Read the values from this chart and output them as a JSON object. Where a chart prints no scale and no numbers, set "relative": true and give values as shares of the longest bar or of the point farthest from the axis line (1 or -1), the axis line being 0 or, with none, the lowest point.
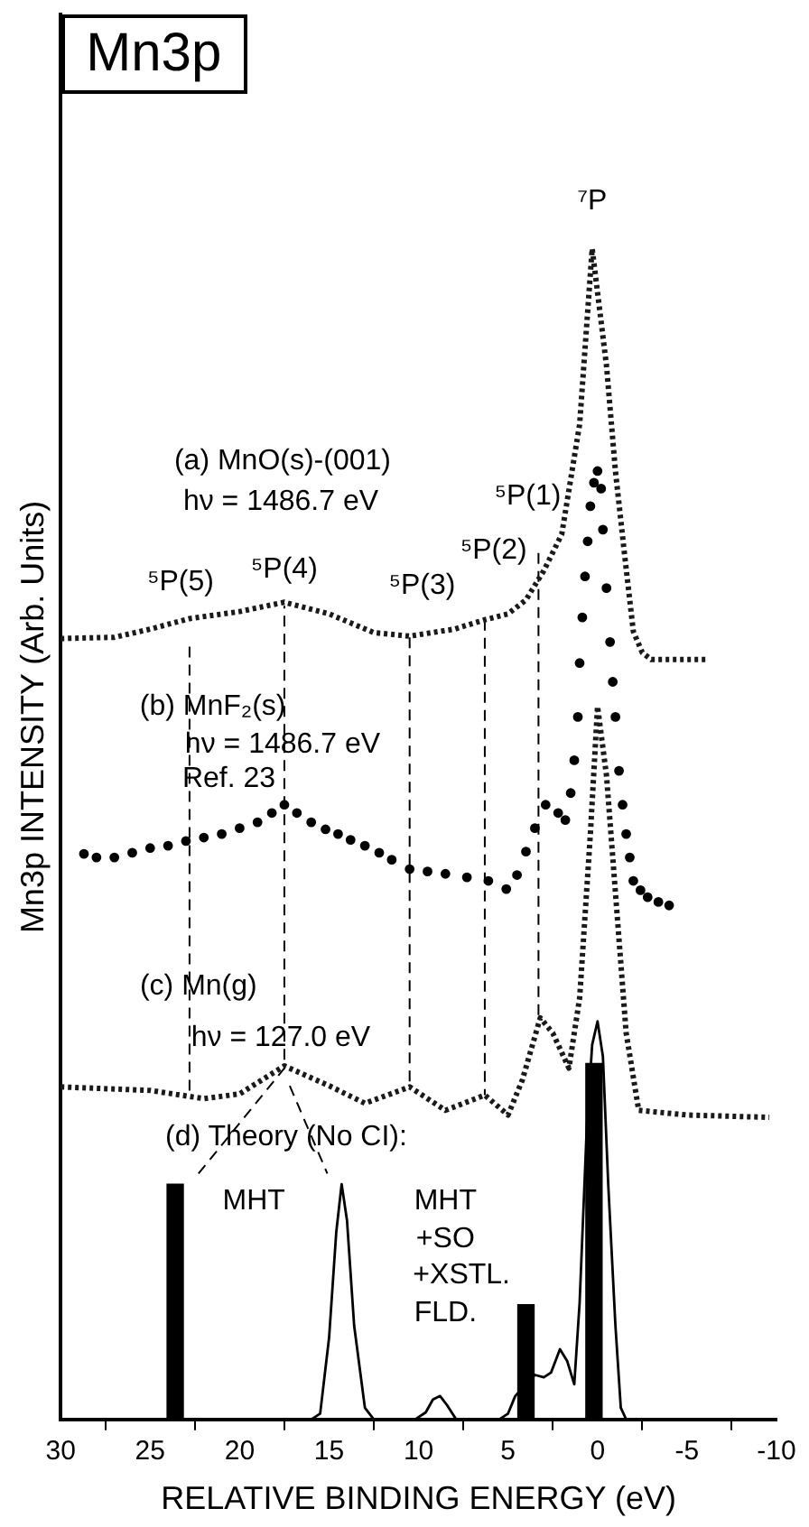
{
  "chart_data": {
    "type": "line",
    "title": "Mn3p",
    "xlabel": "RELATIVE BINDING ENERGY (eV)",
    "ylabel": "Mn3p INTENSITY (Arb. Units)",
    "relative": true,
    "legend": false,
    "grid": false,
    "xlim": [
      30,
      -10
    ],
    "xticks": [
      30,
      25,
      20,
      15,
      10,
      5,
      0,
      -5,
      -10
    ],
    "series": [
      {
        "line_style": "dotted",
        "marker": "none",
        "color": "#1a1a1a",
        "x": [
          30,
          27,
          25,
          22.8,
          20,
          17.5,
          15,
          12.5,
          10.5,
          8,
          6.3,
          5,
          4,
          3,
          2,
          1,
          0.3,
          -0.5,
          -1,
          -1.5,
          -2,
          -2.5,
          -3,
          -5,
          -6.1
        ],
        "values": [
          0.667,
          0.668,
          0.675,
          0.684,
          0.69,
          0.698,
          0.688,
          0.672,
          0.669,
          0.675,
          0.683,
          0.688,
          0.7,
          0.725,
          0.756,
          0.85,
          1.0,
          0.9,
          0.81,
          0.74,
          0.673,
          0.655,
          0.649,
          0.649,
          0.649
        ]
      },
      {
        "type": "scatter",
        "marker": "circle",
        "color": "#000000",
        "x": [
          28.7,
          28,
          27,
          26,
          25,
          24,
          23,
          22,
          21,
          20,
          19,
          18.2,
          17.5,
          16.8,
          16,
          15.2,
          14.5,
          13.8,
          13,
          12.2,
          11.5,
          10.5,
          9.5,
          8.5,
          7.3,
          6.1,
          5.1,
          4.5,
          4,
          3.5,
          2.9,
          2.2,
          1.8,
          1.5,
          1.3,
          1.1,
          1,
          0.85,
          0.7,
          0.55,
          0.4,
          0.2,
          0,
          -0.2,
          -0.3,
          -0.5,
          -0.7,
          -0.85,
          -1,
          -1.2,
          -1.4,
          -1.6,
          -1.8,
          -2,
          -2.4,
          -2.8,
          -3.4,
          -4
        ],
        "values": [
          0.483,
          0.48,
          0.48,
          0.484,
          0.488,
          0.49,
          0.494,
          0.497,
          0.5,
          0.505,
          0.51,
          0.518,
          0.525,
          0.518,
          0.51,
          0.504,
          0.5,
          0.495,
          0.49,
          0.484,
          0.478,
          0.47,
          0.468,
          0.466,
          0.463,
          0.46,
          0.453,
          0.465,
          0.485,
          0.505,
          0.525,
          0.518,
          0.512,
          0.535,
          0.563,
          0.6,
          0.646,
          0.685,
          0.72,
          0.75,
          0.78,
          0.8,
          0.81,
          0.795,
          0.76,
          0.71,
          0.664,
          0.63,
          0.6,
          0.554,
          0.525,
          0.5,
          0.48,
          0.46,
          0.452,
          0.446,
          0.442,
          0.439
        ]
      },
      {
        "line_style": "dotted",
        "marker": "none",
        "color": "#1a1a1a",
        "x": [
          30,
          25,
          22,
          20,
          17.5,
          15,
          13,
          10.5,
          8.5,
          6.3,
          5,
          4.2,
          3.2,
          2.5,
          1.6,
          1,
          0.4,
          0,
          -0.5,
          -1,
          -1.6,
          -2.3,
          -5,
          -9.6
        ],
        "values": [
          0.284,
          0.281,
          0.274,
          0.278,
          0.302,
          0.285,
          0.27,
          0.284,
          0.264,
          0.277,
          0.26,
          0.29,
          0.343,
          0.33,
          0.3,
          0.36,
          0.5,
          0.609,
          0.55,
          0.45,
          0.33,
          0.264,
          0.26,
          0.258
        ]
      },
      {
        "line_style": "solid",
        "marker": "none",
        "color": "#000000",
        "x": [
          30,
          16,
          15.5,
          15,
          14.6,
          14.3,
          14,
          13.6,
          13,
          12.5,
          10.2,
          9.6,
          9.2,
          8.8,
          8.4,
          7.9,
          5.5,
          5,
          4.6,
          4,
          3.5,
          3,
          2.6,
          2.1,
          1.7,
          1.3,
          1,
          0.6,
          0.3,
          0,
          -0.3,
          -0.6,
          -1,
          -1.3,
          -1.6,
          -10
        ],
        "values": [
          0,
          0,
          0.005,
          0.07,
          0.16,
          0.201,
          0.17,
          0.08,
          0.01,
          0,
          0,
          0.006,
          0.017,
          0.02,
          0.012,
          0,
          0,
          0.005,
          0.02,
          0.03,
          0.038,
          0.036,
          0.04,
          0.06,
          0.05,
          0.03,
          0.1,
          0.25,
          0.32,
          0.34,
          0.31,
          0.2,
          0.08,
          0.01,
          0,
          0
        ]
      },
      {
        "type": "bar",
        "color": "#000000",
        "x": [
          23.6,
          4.0,
          0.2
        ],
        "values": [
          0.201,
          0.098,
          0.304
        ]
      },
      {
        "line_style": "dashed",
        "marker": "none",
        "color": "#000000",
        "x": [
          22.8,
          22.8
        ],
        "values": [
          0.66,
          0.28
        ]
      },
      {
        "line_style": "dashed",
        "marker": "none",
        "color": "#000000",
        "x": [
          22.3,
          17.5,
          17.5
        ],
        "values": [
          0.21,
          0.3,
          0.695
        ]
      },
      {
        "line_style": "dashed",
        "marker": "none",
        "color": "#000000",
        "x": [
          10.5,
          10.5
        ],
        "values": [
          0.668,
          0.284
        ]
      },
      {
        "line_style": "dashed",
        "marker": "none",
        "color": "#000000",
        "x": [
          6.3,
          6.3
        ],
        "values": [
          0.683,
          0.277
        ]
      },
      {
        "line_style": "dashed",
        "marker": "none",
        "color": "#000000",
        "x": [
          3.3,
          3.3
        ],
        "values": [
          0.74,
          0.34
        ]
      },
      {
        "line_style": "dashed",
        "marker": "none",
        "color": "#000000",
        "x": [
          17.2,
          15.1
        ],
        "values": [
          0.285,
          0.21
        ]
      }
    ],
    "annotations": [
      "⁷P",
      "(a) MnO(s)-(001)",
      "hν = 1486.7 eV",
      "⁵P(1)",
      "⁵P(2)",
      "⁵P(3)",
      "⁵P(4)",
      "⁵P(5)",
      "(b) MnF₂(s)",
      "hν = 1486.7 eV",
      "Ref. 23",
      "(c) Mn(g)",
      "hν = 127.0 eV",
      "(d) Theory (No CI):",
      "MHT",
      "MHT",
      "+SO",
      "+XSTL.",
      "FLD."
    ]
  }
}
